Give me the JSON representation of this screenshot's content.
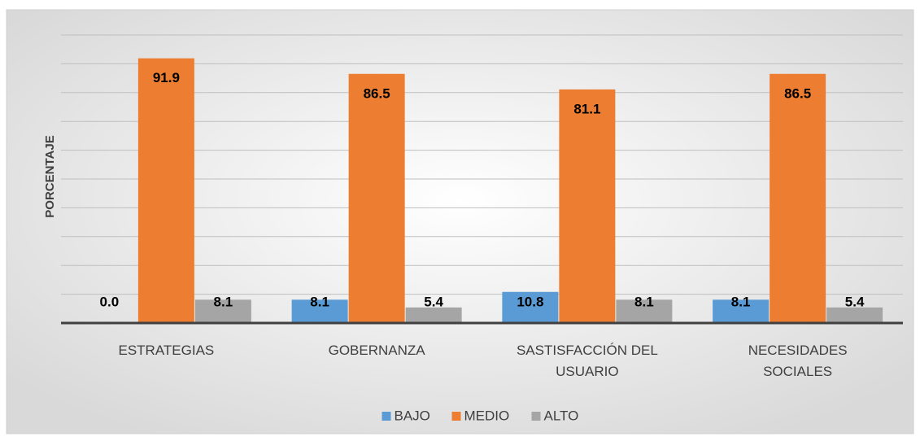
{
  "chart_data": {
    "type": "bar",
    "y_label": "PORCENTAJE",
    "categories": [
      "ESTRATEGIAS",
      "GOBERNANZA",
      "SASTISFACCIÓN DEL USUARIO",
      "NECESIDADES SOCIALES"
    ],
    "series": [
      {
        "name": "BAJO",
        "color": "#5b9bd5",
        "values": [
          0,
          8.1,
          10.8,
          8.1
        ],
        "value_labels": [
          "0.0",
          "8.1",
          "10.8",
          "8.1"
        ]
      },
      {
        "name": "MEDIO",
        "color": "#ed7d31",
        "values": [
          91.9,
          86.5,
          81.1,
          86.5
        ]
      },
      {
        "name": "ALTO",
        "color": "#a5a5a5",
        "values": [
          8.1,
          5.4,
          8.1,
          5.4
        ]
      }
    ],
    "ylim": [
      0,
      100
    ],
    "yticks": [
      0,
      10,
      20,
      30,
      40,
      50,
      60,
      70,
      80,
      90,
      100
    ],
    "grid": true,
    "legend": "bottom"
  }
}
